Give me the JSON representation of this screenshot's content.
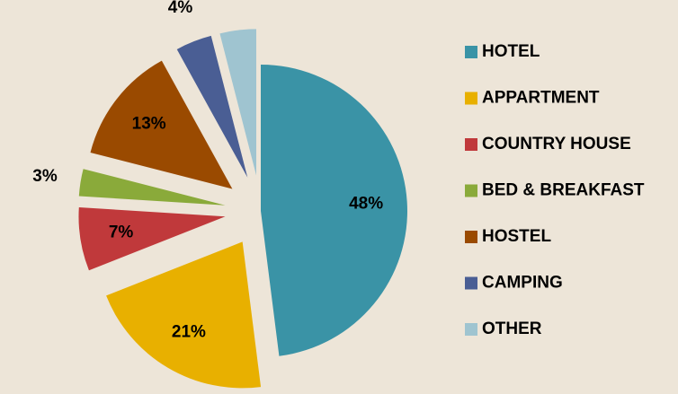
{
  "chart_data": {
    "type": "pie",
    "categories": [
      "HOTEL",
      "APPARTMENT",
      "COUNTRY HOUSE",
      "BED & BREAKFAST",
      "HOSTEL",
      "CAMPING",
      "OTHER"
    ],
    "values": [
      48,
      21,
      7,
      3,
      13,
      4,
      4
    ],
    "value_labels": [
      "48%",
      "21%",
      "7%",
      "3%",
      "13%",
      "4%",
      "4%"
    ],
    "colors": [
      "#3a93a6",
      "#e8b000",
      "#c0393b",
      "#8aaa3a",
      "#9a4a00",
      "#4a5e94",
      "#9fc4d0"
    ],
    "legend": "right"
  }
}
